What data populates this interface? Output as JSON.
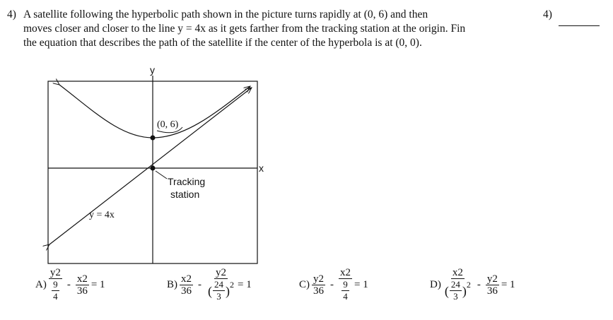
{
  "question": {
    "number": "4)",
    "lines": [
      "A satellite following the hyperbolic path shown in the picture turns rapidly at (0, 6) and then",
      "moves closer and closer to the line y = 4x as it gets farther from the tracking station at the origin. Fin",
      "the equation that describes the path of the satellite if the center of the hyperbola is at (0, 0)."
    ]
  },
  "answer": {
    "number": "4)"
  },
  "figure": {
    "y_axis": "y",
    "x_axis": "x",
    "vertex_label": "(0, 6)",
    "origin_label": [
      "Tracking",
      "station"
    ],
    "asymptote_label": "y = 4x"
  },
  "choices": [
    {
      "letter": "A)",
      "t1": {
        "num": "y2",
        "den": {
          "num": "9",
          "den": "4"
        }
      },
      "op": "-",
      "t2": {
        "num": "x2",
        "den": "36"
      },
      "rhs": "= 1"
    },
    {
      "letter": "B)",
      "t1": {
        "num": "x2",
        "den": "36"
      },
      "op": "-",
      "t2": {
        "num": "y2",
        "den": {
          "open": "(",
          "num": "24",
          "den": "3",
          "close": ")",
          "exp": "2"
        }
      },
      "rhs": "= 1"
    },
    {
      "letter": "C)",
      "t1": {
        "num": "y2",
        "den": "36"
      },
      "op": "-",
      "t2": {
        "num": "x2",
        "den": {
          "num": "9",
          "den": "4"
        }
      },
      "rhs": "= 1"
    },
    {
      "letter": "D)",
      "t1": {
        "num": "x2",
        "den": {
          "open": "(",
          "num": "24",
          "den": "3",
          "close": ")",
          "exp": "2"
        }
      },
      "op": "-",
      "t2": {
        "num": "y2",
        "den": "36"
      },
      "rhs": "= 1"
    }
  ]
}
